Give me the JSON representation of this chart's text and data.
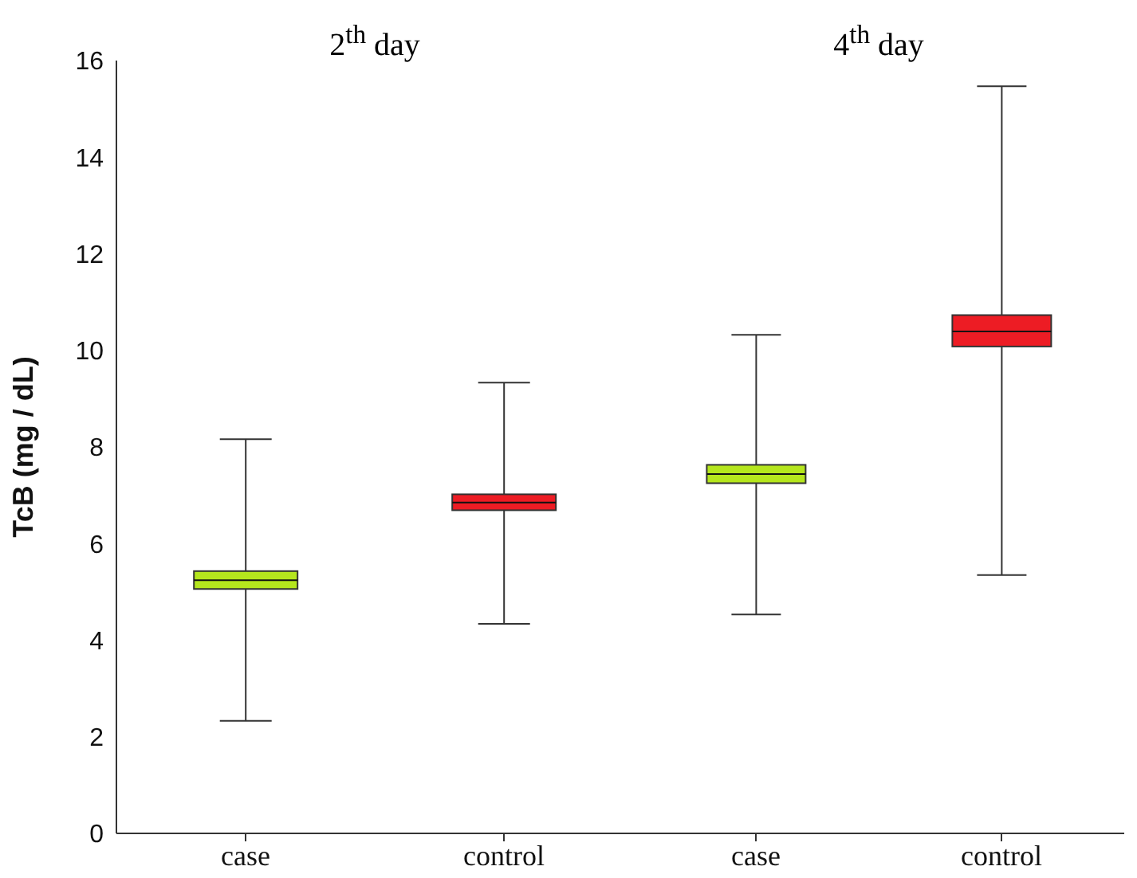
{
  "chart_data": [
    {
      "type": "box",
      "title": "2$^{th}$ day",
      "ylabel": "TcB (mg / dL)",
      "categories": [
        "case",
        "control"
      ],
      "colors": [
        "#b5e61d",
        "#ed1c24"
      ],
      "ylim": [
        0,
        16
      ],
      "yticks": [
        0,
        2,
        4,
        6,
        8,
        10,
        12,
        14,
        16
      ],
      "boxes": [
        {
          "low": 2.33,
          "q1": 5.06,
          "median": 5.24,
          "q3": 5.43,
          "high": 8.16
        },
        {
          "low": 4.34,
          "q1": 6.69,
          "median": 6.85,
          "q3": 7.02,
          "high": 9.33
        }
      ]
    },
    {
      "type": "box",
      "title": "4$^{th}$ day",
      "categories": [
        "case",
        "control"
      ],
      "colors": [
        "#b5e61d",
        "#ed1c24"
      ],
      "ylim": [
        0,
        16
      ],
      "yticks": [
        0,
        2,
        4,
        6,
        8,
        10,
        12,
        14,
        16
      ],
      "tick_labels": "x",
      "boxes": [
        {
          "low": 4.53,
          "q1": 7.25,
          "median": 7.44,
          "q3": 7.63,
          "high": 10.32
        },
        {
          "low": 5.35,
          "q1": 10.08,
          "median": 10.39,
          "q3": 10.73,
          "high": 15.47
        }
      ]
    }
  ]
}
